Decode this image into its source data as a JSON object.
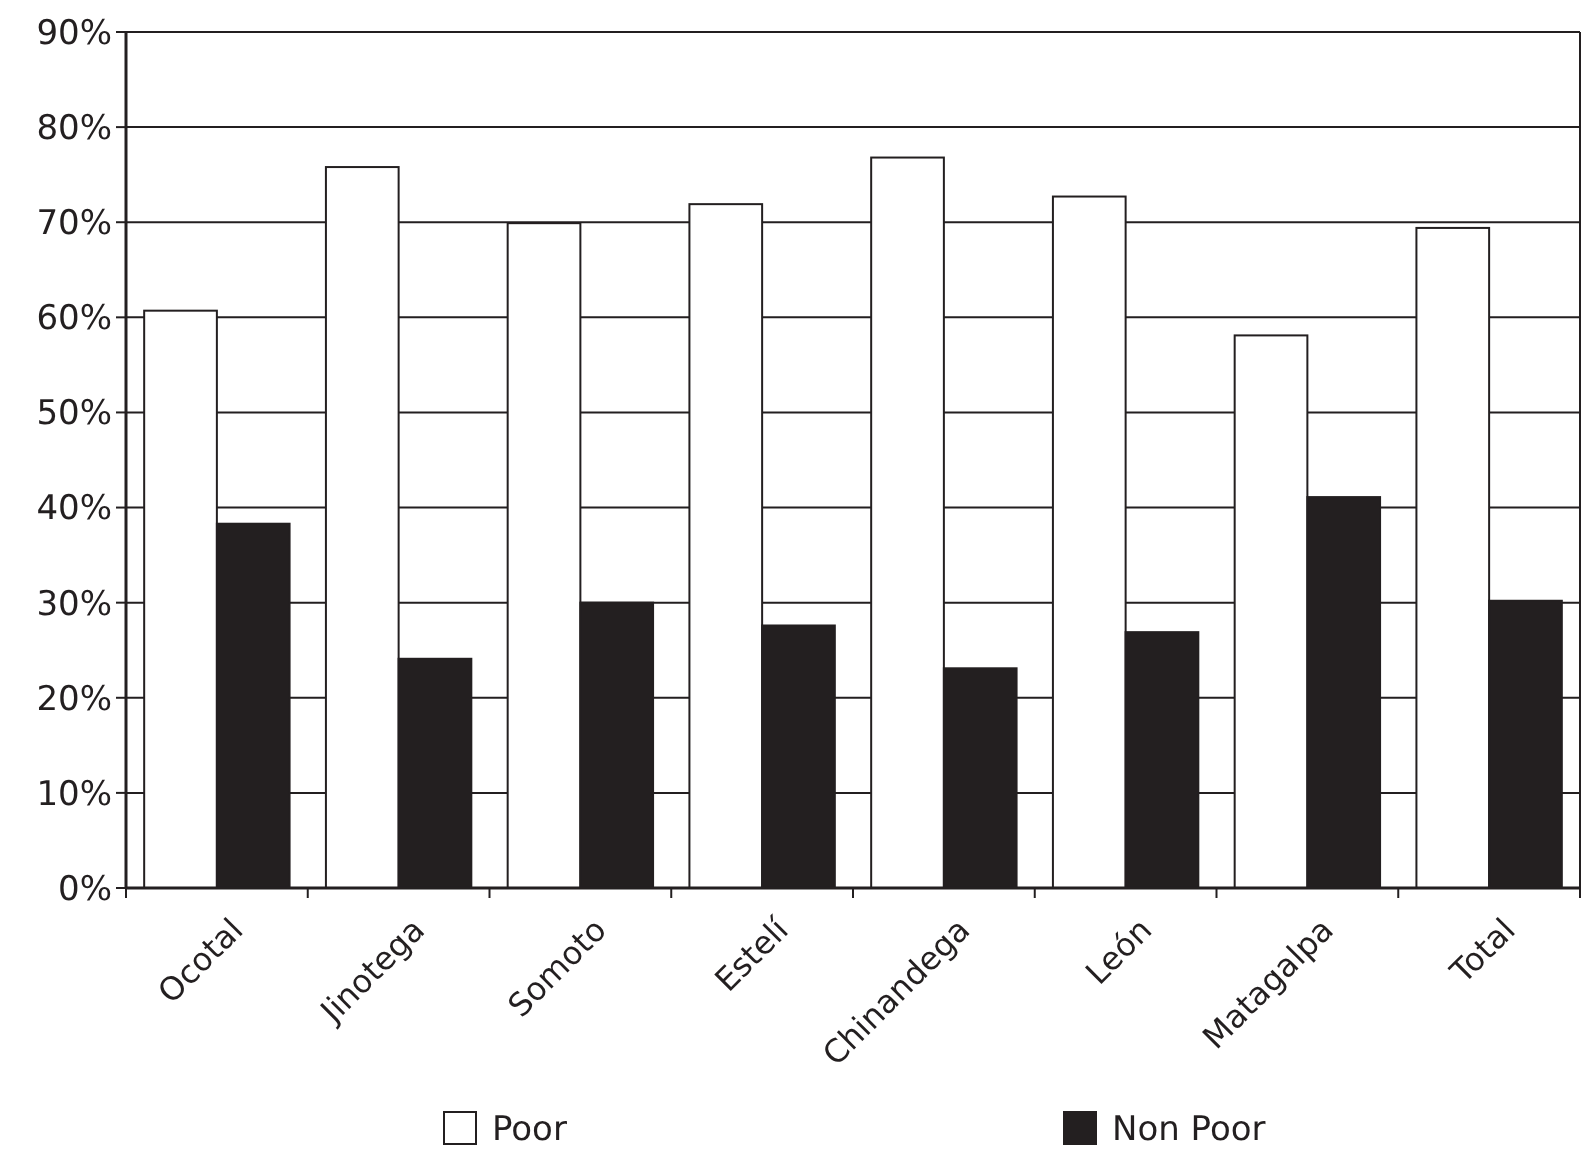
{
  "chart_data": {
    "type": "bar",
    "categories": [
      "Ocotal",
      "Jinotega",
      "Somoto",
      "Estelí",
      "Chinandega",
      "León",
      "Matagalpa",
      "Total"
    ],
    "series": [
      {
        "name": "Poor",
        "color": "#ffffff",
        "values": [
          60.7,
          75.8,
          69.9,
          71.9,
          76.8,
          72.7,
          58.1,
          69.4
        ]
      },
      {
        "name": "Non Poor",
        "color": "#231f20",
        "values": [
          38.3,
          24.1,
          30.0,
          27.6,
          23.1,
          26.9,
          41.1,
          30.2
        ]
      }
    ],
    "ylim": [
      0,
      90
    ],
    "yticks": [
      {
        "value": 0,
        "label": "0%"
      },
      {
        "value": 10,
        "label": "10%"
      },
      {
        "value": 20,
        "label": "20%"
      },
      {
        "value": 30,
        "label": "30%"
      },
      {
        "value": 40,
        "label": "40%"
      },
      {
        "value": 50,
        "label": "50%"
      },
      {
        "value": 60,
        "label": "60%"
      },
      {
        "value": 70,
        "label": "70%"
      },
      {
        "value": 80,
        "label": "80%"
      },
      {
        "value": 90,
        "label": "90%"
      }
    ],
    "grid": "y",
    "legend": "bottom"
  }
}
